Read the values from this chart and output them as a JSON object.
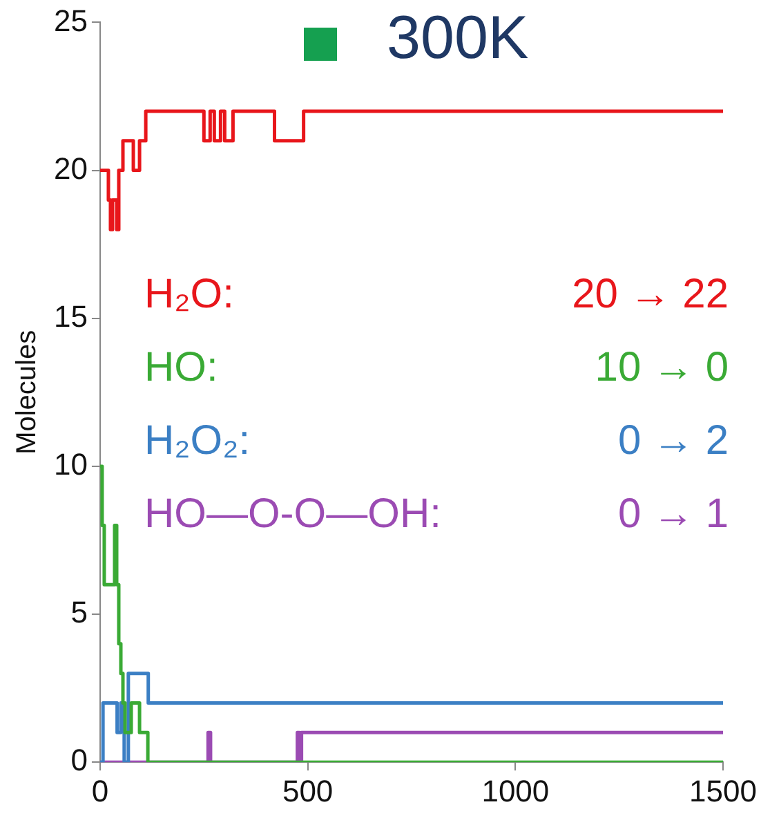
{
  "chart_data": {
    "type": "step",
    "title": "300K",
    "ylabel": "Molecules",
    "xlim": [
      0,
      1500
    ],
    "xticks": [
      0,
      500,
      1000,
      1500
    ],
    "ylim": [
      0,
      25
    ],
    "yticks": [
      0,
      5,
      10,
      15,
      20,
      25
    ],
    "grid": false,
    "legend": "left",
    "marker": "none",
    "annotations": [
      "20 → 22",
      "10 → 0",
      "0 → 2",
      "0 → 1"
    ],
    "series": [
      {
        "name": "H₂O:",
        "color": "#e8161b",
        "x": [
          0,
          20,
          25,
          30,
          40,
          45,
          55,
          80,
          95,
          110,
          250,
          265,
          275,
          290,
          300,
          320,
          420,
          490,
          1500
        ],
        "values": [
          20,
          19,
          18,
          19,
          18,
          20,
          21,
          20,
          21,
          22,
          21,
          22,
          21,
          22,
          21,
          22,
          21,
          22,
          22
        ]
      },
      {
        "name": "HO:",
        "color": "#3aaa35",
        "x": [
          0,
          5,
          10,
          30,
          35,
          40,
          45,
          50,
          55,
          60,
          75,
          95,
          115,
          1500
        ],
        "values": [
          10,
          8,
          6,
          6,
          8,
          6,
          4,
          3,
          2,
          1,
          2,
          1,
          0,
          0
        ]
      },
      {
        "name": "H₂O₂:",
        "color": "#3b7fc4",
        "x": [
          0,
          7,
          41,
          50,
          58,
          68,
          116,
          1500
        ],
        "values": [
          0,
          2,
          1,
          2,
          0,
          3,
          2,
          2
        ]
      },
      {
        "name": "HO—O-O—OH:",
        "color": "#9b4bb3",
        "x": [
          0,
          260,
          266,
          475,
          480,
          485,
          1500
        ],
        "values": [
          0,
          1,
          0,
          1,
          0,
          1,
          1
        ]
      }
    ]
  }
}
